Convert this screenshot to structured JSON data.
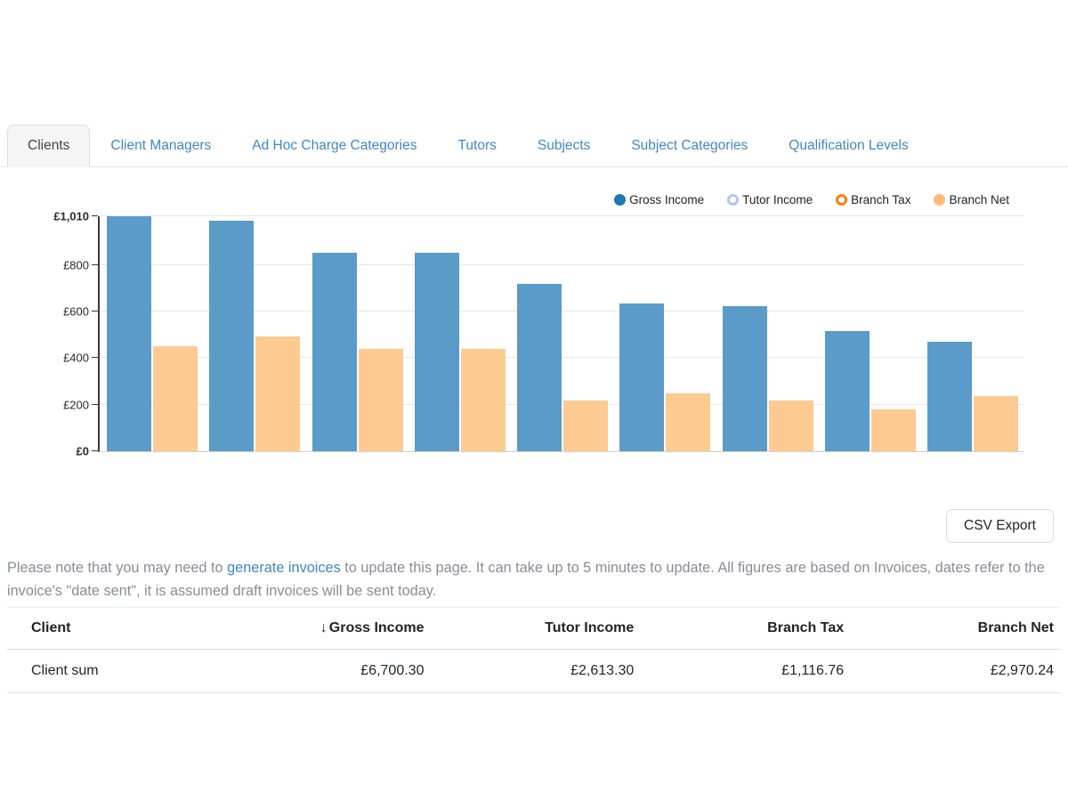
{
  "tabs": {
    "items": [
      {
        "label": "Clients",
        "active": true
      },
      {
        "label": "Client Managers",
        "active": false
      },
      {
        "label": "Ad Hoc Charge Categories",
        "active": false
      },
      {
        "label": "Tutors",
        "active": false
      },
      {
        "label": "Subjects",
        "active": false
      },
      {
        "label": "Subject Categories",
        "active": false
      },
      {
        "label": "Qualification Levels",
        "active": false
      }
    ]
  },
  "legend": {
    "items": [
      {
        "label": "Gross Income",
        "style": "filled",
        "color": "#1f77b4"
      },
      {
        "label": "Tutor Income",
        "style": "hollow",
        "color": "#aec7e8"
      },
      {
        "label": "Branch Tax",
        "style": "hollow",
        "color": "#ff7f0e"
      },
      {
        "label": "Branch Net",
        "style": "filled",
        "color": "#ffbb78"
      }
    ]
  },
  "chart_data": {
    "type": "bar",
    "title": "",
    "xlabel": "",
    "ylabel": "",
    "currency": "£",
    "categories": [
      "",
      "",
      "",
      "",
      "",
      "",
      "",
      "",
      ""
    ],
    "series": [
      {
        "name": "Gross Income",
        "color": "#5b9bc9",
        "values": [
          1010,
          990,
          855,
          855,
          720,
          635,
          625,
          515,
          470
        ]
      },
      {
        "name": "Branch Net",
        "color": "#fdca92",
        "values": [
          450,
          495,
          440,
          440,
          220,
          248,
          220,
          180,
          238
        ]
      }
    ],
    "hidden_series": [
      "Tutor Income",
      "Branch Tax"
    ],
    "ylim": [
      0,
      1010
    ],
    "yticks": [
      {
        "value": 0,
        "label": "£0",
        "bold": true
      },
      {
        "value": 200,
        "label": "£200",
        "bold": false
      },
      {
        "value": 400,
        "label": "£400",
        "bold": false
      },
      {
        "value": 600,
        "label": "£600",
        "bold": false
      },
      {
        "value": 800,
        "label": "£800",
        "bold": false
      },
      {
        "value": 1010,
        "label": "£1,010",
        "bold": true
      }
    ],
    "grid": true,
    "legend_position": "top-right"
  },
  "export": {
    "csv_label": "CSV Export"
  },
  "note": {
    "before": "Please note that you may need to ",
    "link": "generate invoices",
    "after": " to update this page. It can take up to 5 minutes to update. All figures are based on Invoices, dates refer to the invoice's \"date sent\", it is assumed draft invoices will be sent today."
  },
  "table": {
    "headers": [
      "Client",
      "Gross Income",
      "Tutor Income",
      "Branch Tax",
      "Branch Net"
    ],
    "sort": {
      "column": "Gross Income",
      "direction": "desc",
      "icon": "↓"
    },
    "rows": [
      {
        "client": "Client sum",
        "gross_income": "£6,700.30",
        "tutor_income": "£2,613.30",
        "branch_tax": "£1,116.76",
        "branch_net": "£2,970.24"
      }
    ]
  },
  "colors": {
    "tab_link": "#4286c5",
    "gross_income_bar": "#5b9bc9",
    "branch_net_bar": "#fdca92",
    "note_text": "#878e97"
  }
}
